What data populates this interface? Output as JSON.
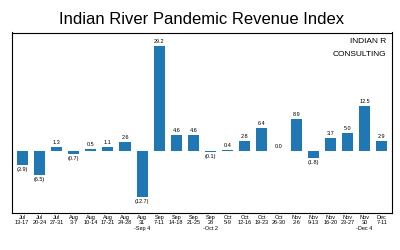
{
  "chart_data": {
    "type": "bar",
    "title": "Indian River Pandemic Revenue Index",
    "categories": [
      "Jul\n13-17",
      "Jul\n20-24",
      "Jul\n27-31",
      "Aug\n3-7",
      "Aug\n10-14",
      "Aug\n17-21",
      "Aug\n24-28",
      "Aug\n31\n-Sep 4",
      "Sep\n7-11",
      "Sep\n14-18",
      "Sep\n21-25",
      "Sep\n28\n-Oct 2",
      "Oct\n5-9",
      "Oct\n12-16",
      "Oct\n19-23",
      "Oct\n26-30",
      "Nov\n2-6",
      "Nov\n9-13",
      "Nov\n16-20",
      "Nov\n23-27",
      "Nov\n30\n-Dec 4",
      "Dec\n7-11"
    ],
    "values": [
      -3.9,
      -6.5,
      1.3,
      -0.7,
      0.5,
      1.1,
      2.6,
      -12.7,
      29.2,
      4.6,
      4.6,
      -0.1,
      0.4,
      2.8,
      6.4,
      0.0,
      8.9,
      -1.8,
      3.7,
      5.0,
      12.5,
      2.9
    ],
    "value_labels": [
      "(3.9)",
      "(6.5)",
      "1.3",
      "(0.7)",
      "0.5",
      "1.1",
      "2.6",
      "(12.7)",
      "29.2",
      "4.6",
      "4.6",
      "(0.1)",
      "0.4",
      "2.8",
      "6.4",
      "0.0",
      "8.9",
      "(1.8)",
      "3.7",
      "5.0",
      "12.5",
      "2.9"
    ],
    "data_labels": true,
    "ylim": [
      -17,
      33
    ],
    "tick_labels": "x",
    "grid": false,
    "annotations": [
      "INDIAN R",
      "CONSULTING"
    ]
  }
}
